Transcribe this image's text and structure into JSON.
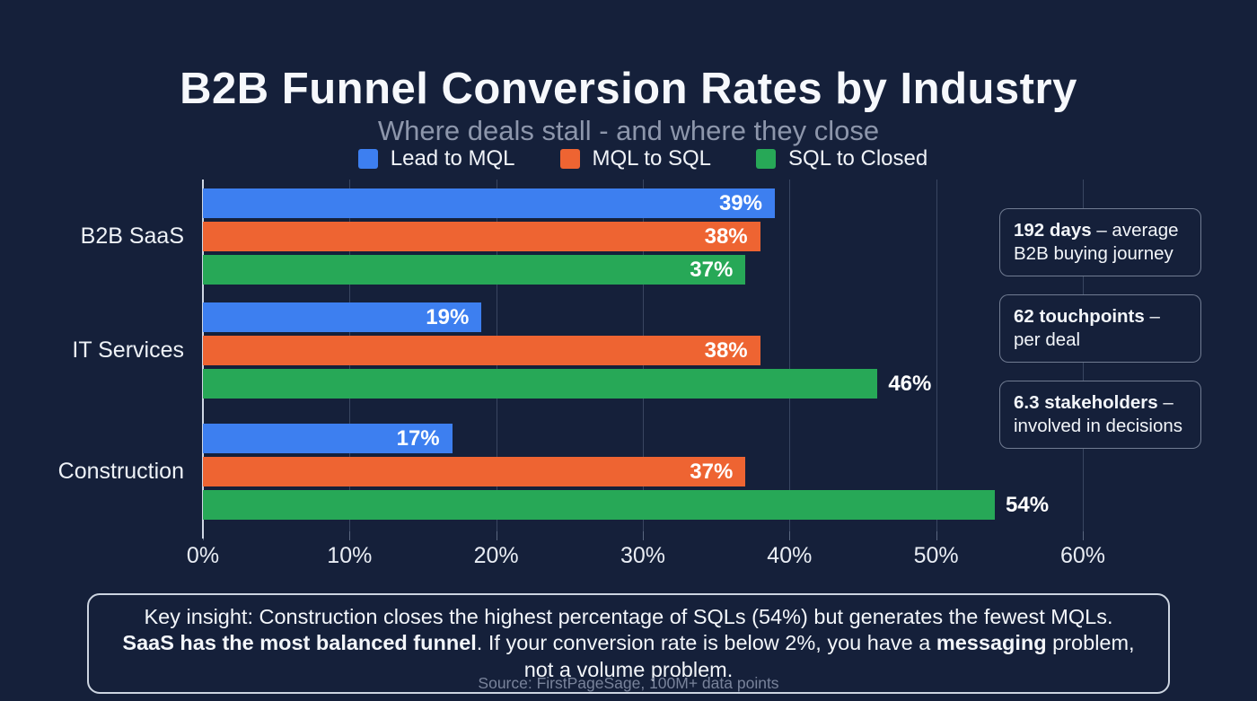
{
  "page": {
    "title": "B2B Funnel Conversion Rates by Industry",
    "subtitle": "Where deals stall - and where they close",
    "source": "Source: FirstPageSage, 100M+ data points",
    "background_color": "#15203a"
  },
  "chart_data": {
    "type": "bar",
    "orientation": "horizontal",
    "title": "B2B Funnel Conversion Rates by Industry",
    "subtitle": "Where deals stall - and where they close",
    "categories": [
      "B2B SaaS",
      "IT Services",
      "Construction"
    ],
    "series": [
      {
        "name": "Lead to MQL",
        "color": "#3d7ff0",
        "values": [
          39,
          19,
          17
        ],
        "label_placement": [
          "inside",
          "inside",
          "inside"
        ]
      },
      {
        "name": "MQL to SQL",
        "color": "#ee6432",
        "values": [
          38,
          38,
          37
        ],
        "label_placement": [
          "inside",
          "inside",
          "inside"
        ]
      },
      {
        "name": "SQL to Closed",
        "color": "#27a857",
        "values": [
          37,
          46,
          54
        ],
        "label_placement": [
          "inside",
          "outside",
          "outside"
        ]
      }
    ],
    "value_suffix": "%",
    "xlim": [
      0,
      60
    ],
    "x_ticks": [
      "0%",
      "10%",
      "20%",
      "30%",
      "40%",
      "50%",
      "60%"
    ],
    "grid": true,
    "legend_position": "top",
    "label_color": "#ffffff"
  },
  "stat_cards": [
    {
      "bold": "192 days",
      "rest": " – average B2B buying journey"
    },
    {
      "bold": "62 touchpoints",
      "rest": " – per deal"
    },
    {
      "bold": "6.3 stakeholders",
      "rest": " – involved in decisions"
    }
  ],
  "insight": {
    "segments": [
      {
        "text": "Key insight: Construction closes the highest percentage of SQLs (54%) but generates the fewest MQLs. ",
        "bold": false
      },
      {
        "text": "SaaS has the most balanced funnel",
        "bold": true
      },
      {
        "text": ". If your conversion rate is below 2%, you have a ",
        "bold": false
      },
      {
        "text": "messaging",
        "bold": true
      },
      {
        "text": " problem, not a volume problem.",
        "bold": false
      }
    ]
  }
}
